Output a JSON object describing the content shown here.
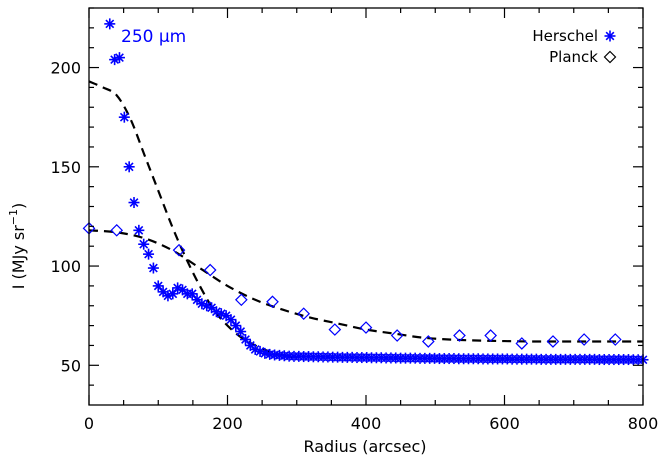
{
  "chart_data": {
    "type": "scatter",
    "xlabel": "Radius (arcsec)",
    "ylabel": "I (MJy sr",
    "ylabel_sup": "−1",
    "ylabel_close": ")",
    "annotation": "250 μm",
    "xlim": [
      0,
      800
    ],
    "ylim": [
      30,
      230
    ],
    "x_ticks": [
      0,
      200,
      400,
      600,
      800
    ],
    "y_ticks": [
      50,
      100,
      150,
      200
    ],
    "grid": false,
    "legend_position": "top-right",
    "colors": {
      "points": "#0000ff",
      "model": "#000000",
      "axes": "#000000"
    },
    "series": [
      {
        "name": "Herschel",
        "marker": "asterisk",
        "x": [
          30,
          37,
          44,
          51,
          58,
          65,
          72,
          79,
          86,
          93,
          100,
          107,
          114,
          121,
          128,
          135,
          142,
          149,
          156,
          163,
          170,
          177,
          184,
          191,
          198,
          205,
          212,
          219,
          226,
          233,
          240,
          247,
          254,
          261,
          268,
          275,
          282,
          289,
          296,
          303,
          310,
          317,
          324,
          331,
          338,
          345,
          352,
          359,
          366,
          373,
          380,
          387,
          394,
          401,
          408,
          415,
          422,
          429,
          436,
          443,
          450,
          457,
          464,
          471,
          478,
          485,
          492,
          499,
          506,
          513,
          520,
          527,
          534,
          541,
          548,
          555,
          562,
          569,
          576,
          583,
          590,
          597,
          604,
          611,
          618,
          625,
          632,
          639,
          646,
          653,
          660,
          667,
          674,
          681,
          688,
          695,
          702,
          709,
          716,
          723,
          730,
          737,
          744,
          751,
          758,
          765,
          772,
          779,
          786,
          793,
          800
        ],
        "y": [
          222,
          204,
          205,
          175,
          150,
          132,
          118,
          111,
          106,
          99,
          90,
          87,
          85,
          86,
          89,
          88,
          86,
          86,
          83,
          81,
          80,
          79,
          77,
          76,
          75,
          73,
          70,
          67,
          63,
          60,
          58,
          57,
          56,
          55.5,
          55.2,
          55,
          54.8,
          54.6,
          54.5,
          54.5,
          54.4,
          54.4,
          54.3,
          54.3,
          54.2,
          54.2,
          54.1,
          54.1,
          54,
          54,
          54,
          53.9,
          53.9,
          53.9,
          53.8,
          53.8,
          53.8,
          53.7,
          53.7,
          53.7,
          53.6,
          53.6,
          53.6,
          53.6,
          53.5,
          53.5,
          53.5,
          53.5,
          53.4,
          53.4,
          53.4,
          53.4,
          53.3,
          53.3,
          53.3,
          53.3,
          53.3,
          53.2,
          53.2,
          53.2,
          53.2,
          53.2,
          53.2,
          53.1,
          53.1,
          53.1,
          53.1,
          53.1,
          53.1,
          53,
          53,
          53,
          53,
          53,
          53,
          53,
          53,
          53,
          53,
          53,
          53,
          52.9,
          52.9,
          52.9,
          52.9,
          52.9,
          52.9,
          52.9,
          52.8,
          52.8,
          52.8
        ]
      },
      {
        "name": "Planck",
        "marker": "diamond",
        "x": [
          0,
          40,
          130,
          175,
          220,
          265,
          310,
          355,
          400,
          445,
          490,
          535,
          580,
          625,
          670,
          715,
          760
        ],
        "y": [
          119,
          118,
          108,
          98,
          83,
          82,
          76,
          68,
          69,
          65,
          62,
          65,
          65,
          61,
          62,
          63,
          63
        ]
      }
    ],
    "model_curves": [
      {
        "x": [
          0,
          20,
          40,
          60,
          80,
          100,
          120,
          140,
          160,
          180,
          200,
          220,
          240,
          260,
          280,
          300
        ],
        "y": [
          193,
          190,
          186,
          174,
          156,
          138,
          120,
          104,
          90,
          78,
          70,
          64,
          60,
          57,
          55,
          54
        ]
      },
      {
        "x": [
          0,
          40,
          80,
          120,
          160,
          200,
          240,
          280,
          320,
          360,
          400,
          440,
          480,
          520,
          560,
          600,
          640,
          680,
          720,
          760,
          800
        ],
        "y": [
          118,
          117,
          114,
          108,
          99,
          90,
          83,
          78,
          74,
          71,
          68,
          66,
          64,
          63,
          62.5,
          62.2,
          62,
          62,
          62,
          62,
          62
        ]
      }
    ]
  }
}
